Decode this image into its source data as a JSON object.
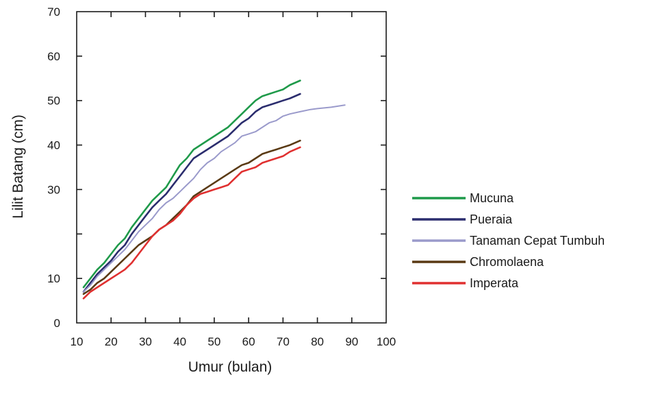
{
  "chart_data": {
    "type": "line",
    "title": "",
    "xlabel": "Umur (bulan)",
    "ylabel": "Lilit Batang (cm)",
    "xlim": [
      10,
      100
    ],
    "ylim": [
      0,
      70
    ],
    "x_ticks": [
      10,
      20,
      30,
      40,
      50,
      60,
      70,
      80,
      90,
      100
    ],
    "y_ticks": [
      0,
      10,
      20,
      30,
      40,
      50,
      60,
      70
    ],
    "y_tick_labels": [
      "0",
      "10",
      "",
      "30",
      "",
      "40",
      "",
      "50",
      "60",
      "70"
    ],
    "y_tick_label_positions": [
      0,
      10,
      20,
      30,
      35,
      40,
      45,
      50,
      60,
      70
    ],
    "grid": false,
    "legend_position": "right",
    "series": [
      {
        "name": "Mucuna",
        "color": "#1f9a4a",
        "x": [
          12,
          14,
          16,
          18,
          20,
          22,
          24,
          26,
          28,
          30,
          32,
          34,
          36,
          38,
          40,
          42,
          44,
          46,
          48,
          50,
          52,
          54,
          56,
          58,
          60,
          62,
          64,
          66,
          68,
          70,
          72,
          75
        ],
        "y": [
          8,
          10,
          12,
          13.5,
          15.5,
          17.5,
          19,
          21.5,
          23.5,
          25.5,
          27.5,
          29,
          30.5,
          33,
          35.5,
          37,
          39,
          40,
          41,
          42,
          43,
          44,
          45.5,
          47,
          48.5,
          50,
          51,
          51.5,
          52,
          52.5,
          53.5,
          54.5
        ]
      },
      {
        "name": "Pueraia",
        "color": "#2b2d6e",
        "x": [
          12,
          14,
          16,
          18,
          20,
          22,
          24,
          26,
          28,
          30,
          32,
          34,
          36,
          38,
          40,
          42,
          44,
          46,
          48,
          50,
          52,
          54,
          56,
          58,
          60,
          62,
          64,
          66,
          68,
          70,
          72,
          75
        ],
        "y": [
          7,
          9,
          11,
          12.5,
          14,
          16,
          17.5,
          20,
          22,
          24,
          26,
          27.5,
          29,
          31,
          33,
          35,
          37,
          38,
          39,
          40,
          41,
          42,
          43.5,
          45,
          46,
          47.5,
          48.5,
          49,
          49.5,
          50,
          50.5,
          51.5
        ]
      },
      {
        "name": "Tanaman Cepat Tumbuh",
        "color": "#9a9acb",
        "x": [
          12,
          14,
          16,
          18,
          20,
          22,
          24,
          26,
          28,
          30,
          32,
          34,
          36,
          38,
          40,
          42,
          44,
          46,
          48,
          50,
          52,
          54,
          56,
          58,
          60,
          62,
          64,
          66,
          68,
          70,
          72,
          75,
          78,
          80,
          84,
          88
        ],
        "y": [
          7,
          8.5,
          10.5,
          12,
          13.5,
          15,
          16.5,
          18.5,
          20.5,
          22,
          23.5,
          25.5,
          27,
          28,
          29.5,
          31,
          32.5,
          34.5,
          36,
          37,
          38.5,
          39.5,
          40.5,
          42,
          42.5,
          43,
          44,
          45,
          45.5,
          46.5,
          47,
          47.5,
          48,
          48.2,
          48.5,
          49
        ]
      },
      {
        "name": "Chromolaena",
        "color": "#5a3a14",
        "x": [
          12,
          14,
          16,
          18,
          20,
          22,
          24,
          26,
          28,
          30,
          32,
          34,
          36,
          38,
          40,
          42,
          44,
          46,
          48,
          50,
          52,
          54,
          56,
          58,
          60,
          62,
          64,
          66,
          68,
          70,
          72,
          75
        ],
        "y": [
          6.5,
          7.5,
          9,
          10,
          11.5,
          13,
          14.5,
          16,
          17.5,
          18.5,
          19.5,
          21,
          22,
          23.5,
          25,
          26.5,
          28.5,
          29.5,
          30.5,
          31.5,
          32.5,
          33.5,
          34.5,
          35.5,
          36,
          37,
          38,
          38.5,
          39,
          39.5,
          40,
          41
        ]
      },
      {
        "name": "Imperata",
        "color": "#e03030",
        "x": [
          12,
          14,
          16,
          18,
          20,
          22,
          24,
          26,
          28,
          30,
          32,
          34,
          36,
          38,
          40,
          42,
          44,
          46,
          48,
          50,
          52,
          54,
          56,
          58,
          60,
          62,
          64,
          66,
          68,
          70,
          72,
          75
        ],
        "y": [
          5.5,
          7,
          8,
          9,
          10,
          11,
          12,
          13.5,
          15.5,
          17.5,
          19.5,
          21,
          22,
          23,
          24.5,
          26.5,
          28,
          29,
          29.5,
          30,
          30.5,
          31,
          32.5,
          34,
          34.5,
          35,
          36,
          36.5,
          37,
          37.5,
          38.5,
          39.5
        ]
      }
    ]
  }
}
